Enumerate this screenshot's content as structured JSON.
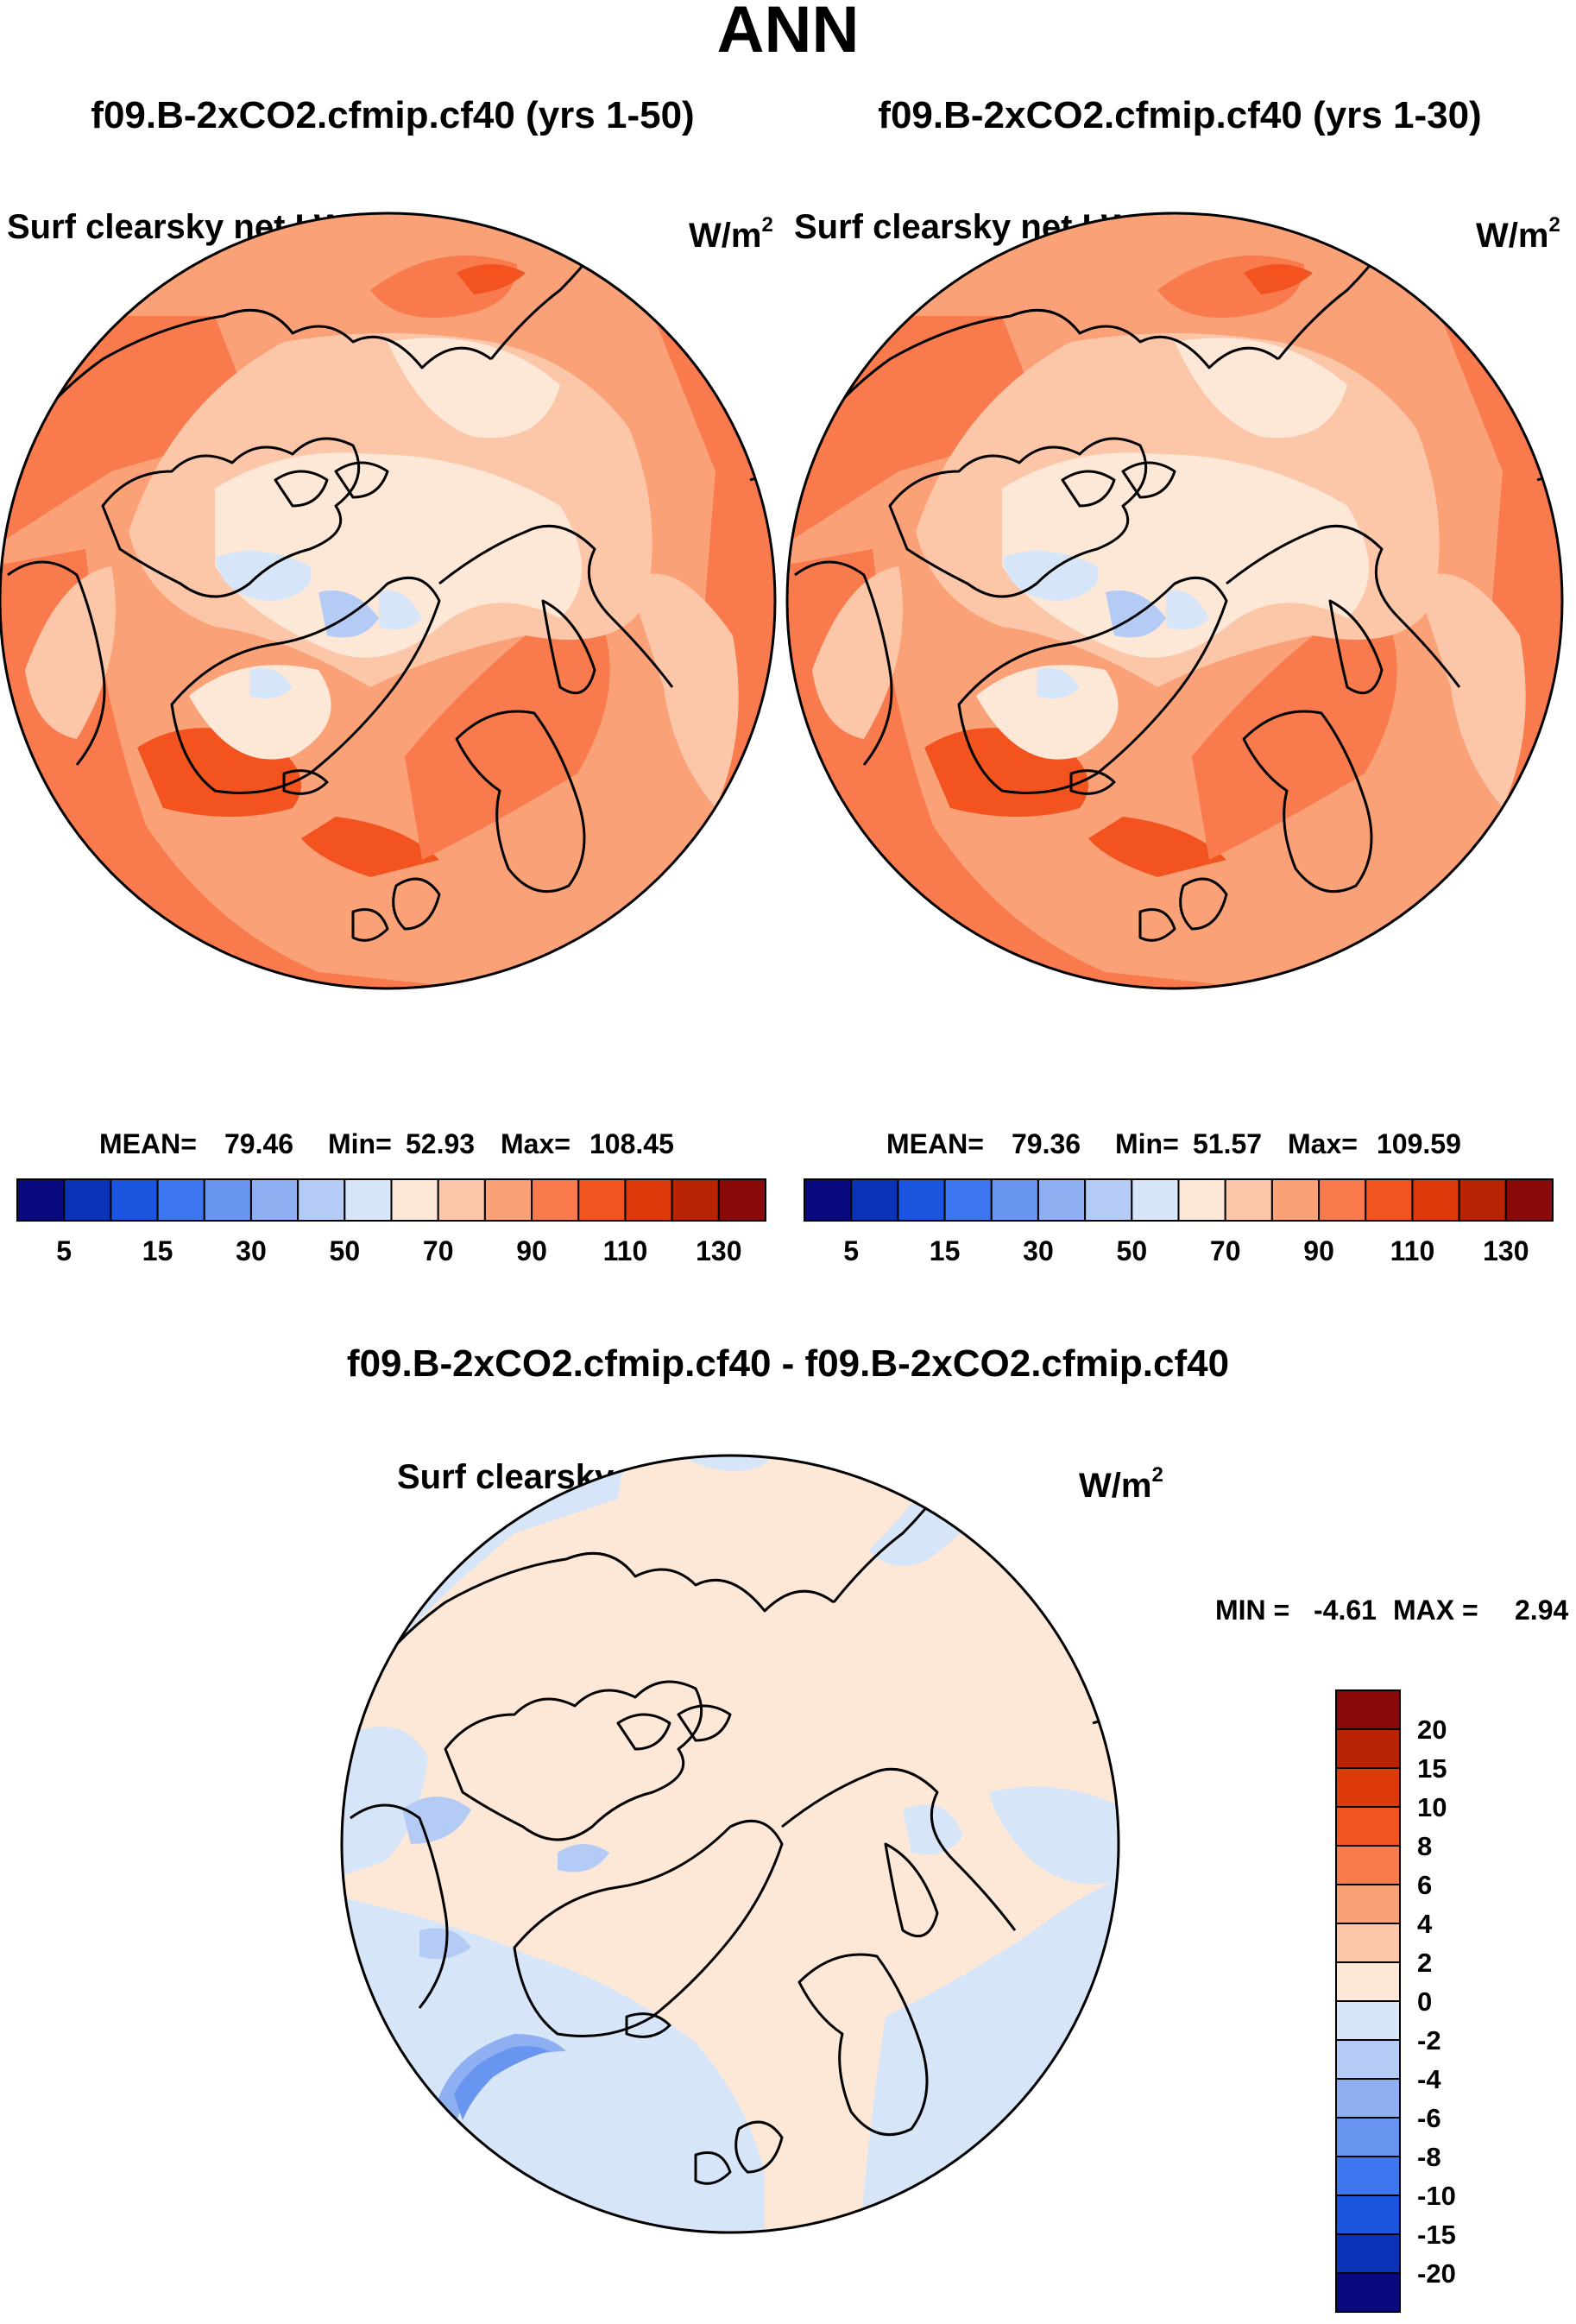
{
  "page": {
    "title": "ANN",
    "palette": {
      "blues": [
        "#0a0a80",
        "#0a33b8",
        "#1a56e0",
        "#3d77f0",
        "#6895ef",
        "#8eb0f2",
        "#b4ccf5",
        "#d6e6f8"
      ],
      "reds": [
        "#fde8d7",
        "#fcc6a9",
        "#fba178",
        "#f97a4c",
        "#f2531f",
        "#dc3a0a",
        "#b92504",
        "#8a0a0a"
      ]
    }
  },
  "panels": [
    {
      "case": "f09.B-2xCO2.cfmip.cf40 (yrs 1-50)",
      "variable": "Surf clearsky net LW",
      "unit": "W/m",
      "unit_sup": "2",
      "mean_label": "MEAN=",
      "mean": "79.46",
      "min_label": "Min=",
      "min": "52.93",
      "max_label": "Max=",
      "max": "108.45",
      "colorbar_ticks": [
        "5",
        "15",
        "30",
        "50",
        "70",
        "90",
        "110",
        "130"
      ]
    },
    {
      "case": "f09.B-2xCO2.cfmip.cf40 (yrs 1-30)",
      "variable": "Surf clearsky net LW",
      "unit": "W/m",
      "unit_sup": "2",
      "mean_label": "MEAN=",
      "mean": "79.36",
      "min_label": "Min=",
      "min": "51.57",
      "max_label": "Max=",
      "max": "109.59",
      "colorbar_ticks": [
        "5",
        "15",
        "30",
        "50",
        "70",
        "90",
        "110",
        "130"
      ]
    }
  ],
  "difference": {
    "title": "f09.B-2xCO2.cfmip.cf40 - f09.B-2xCO2.cfmip.cf40",
    "variable": "Surf clearsky net LW",
    "unit": "W/m",
    "unit_sup": "2",
    "min_label": "MIN =",
    "min": "-4.61",
    "max_label": "MAX =",
    "max": "2.94",
    "colorbar_labels": [
      "20",
      "15",
      "10",
      "8",
      "6",
      "4",
      "2",
      "0",
      "-2",
      "-4",
      "-6",
      "-8",
      "-10",
      "-15",
      "-20"
    ]
  }
}
